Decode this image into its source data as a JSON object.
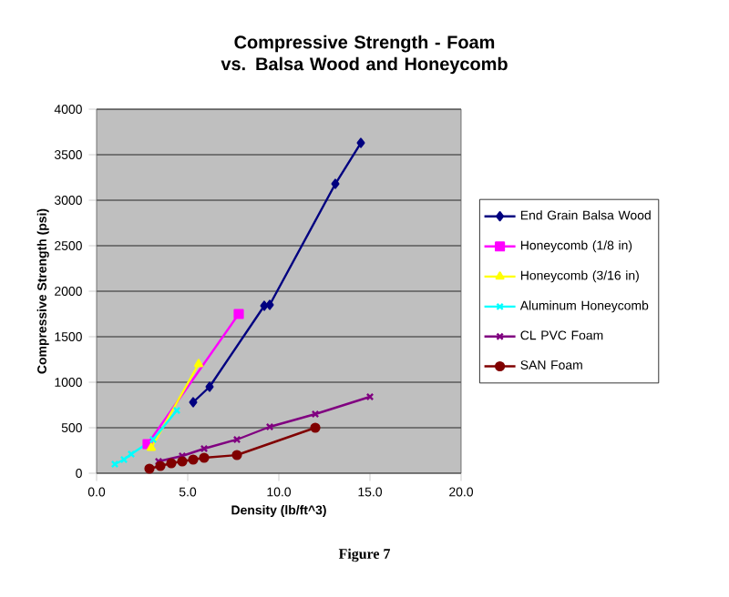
{
  "chart_data": {
    "type": "line",
    "title": "Compressive Strength - Foam vs. Balsa Wood and Honeycomb",
    "xlabel": "Density (lb/ft^3)",
    "ylabel": "Compressive Strength (psi)",
    "annotations": [
      "Figure 7"
    ],
    "xlim": [
      0,
      20
    ],
    "ylim": [
      0,
      4000
    ],
    "xticks": [
      {
        "value": 0,
        "label": "0.0"
      },
      {
        "value": 5,
        "label": "5.0"
      },
      {
        "value": 10,
        "label": "10.0"
      },
      {
        "value": 15,
        "label": "15.0"
      },
      {
        "value": 20,
        "label": "20.0"
      }
    ],
    "yticks": [
      0,
      500,
      1000,
      1500,
      2000,
      2500,
      3000,
      3500,
      4000
    ],
    "grid": "y",
    "legend": "right",
    "line_style": "solid",
    "series": [
      {
        "name": "End Grain Balsa Wood",
        "color": "#000080",
        "marker": "diamond",
        "x": [
          5.3,
          6.2,
          9.2,
          9.5,
          13.1,
          14.5
        ],
        "values": [
          780,
          950,
          1840,
          1850,
          3180,
          3630
        ]
      },
      {
        "name": "Honeycomb (1/8 in)",
        "color": "#ff00ff",
        "marker": "square",
        "x": [
          2.8,
          7.8
        ],
        "values": [
          320,
          1750
        ]
      },
      {
        "name": "Honeycomb (3/16 in)",
        "color": "#ffff00",
        "marker": "triangle",
        "x": [
          3.0,
          5.6
        ],
        "values": [
          280,
          1200
        ]
      },
      {
        "name": "Aluminum Honeycomb",
        "color": "#00ffff",
        "marker": "cross",
        "x": [
          1.0,
          1.5,
          1.9,
          3.1,
          4.4
        ],
        "values": [
          100,
          150,
          210,
          370,
          690
        ]
      },
      {
        "name": "CL PVC Foam",
        "color": "#800080",
        "marker": "cross",
        "x": [
          3.4,
          4.7,
          5.9,
          7.7,
          9.5,
          12.0,
          15.0
        ],
        "values": [
          130,
          190,
          270,
          370,
          510,
          650,
          840
        ]
      },
      {
        "name": "SAN Foam",
        "color": "#800000",
        "marker": "circle",
        "x": [
          2.9,
          3.5,
          4.1,
          4.7,
          5.3,
          5.9,
          7.7,
          12.0
        ],
        "values": [
          50,
          80,
          110,
          130,
          150,
          170,
          200,
          500
        ]
      }
    ]
  }
}
